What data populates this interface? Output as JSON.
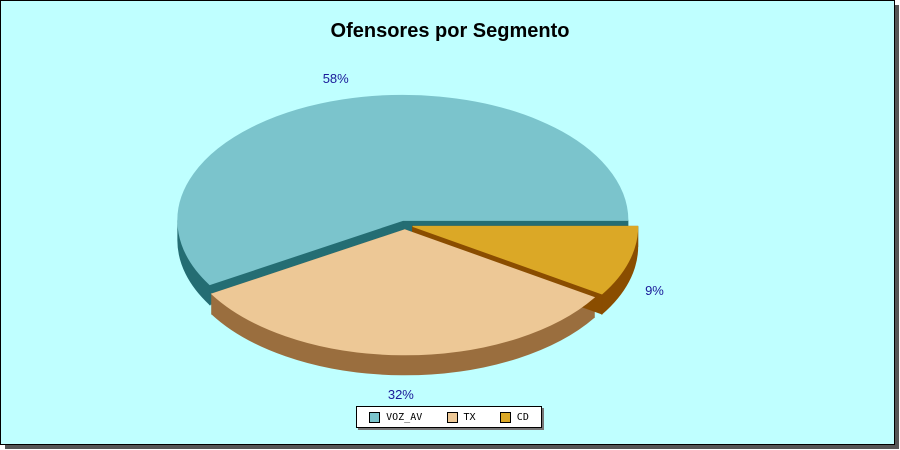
{
  "chart_data": {
    "type": "pie",
    "title": "Ofensores por Segmento",
    "slices": [
      {
        "name": "VOZ_AV",
        "value": 58,
        "label": "58%",
        "color": "#7bc4cc",
        "side_color": "#246d73"
      },
      {
        "name": "TX",
        "value": 32,
        "label": "32%",
        "color": "#edc896",
        "side_color": "#9a6e3e"
      },
      {
        "name": "CD",
        "value": 9,
        "label": "9%",
        "color": "#dba826",
        "side_color": "#8a4d00"
      }
    ],
    "three_d": true,
    "exploded": true,
    "legend_position": "bottom",
    "label_color": "#1a1a99",
    "background_color": "#bfffff"
  }
}
